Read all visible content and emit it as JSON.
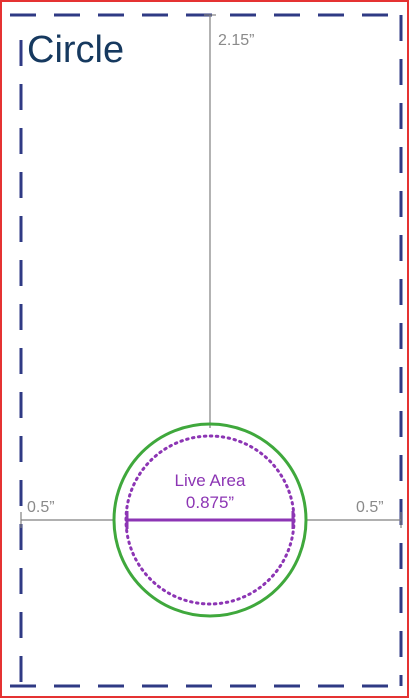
{
  "diagram": {
    "title": "Circle",
    "height_label": "2.15”",
    "left_margin_label": "0.5”",
    "right_margin_label": "0.5”",
    "live_area_label": "Live Area",
    "live_area_size_label": "0.875”"
  },
  "colors": {
    "outer_border": "#e53232",
    "safe_area_dash": "#2f3a84",
    "guide_line": "#808080",
    "outer_circle": "#3fa83c",
    "live_area": "#8c35b4",
    "title_text": "#16395f",
    "measure_text": "#8a8a8a"
  }
}
